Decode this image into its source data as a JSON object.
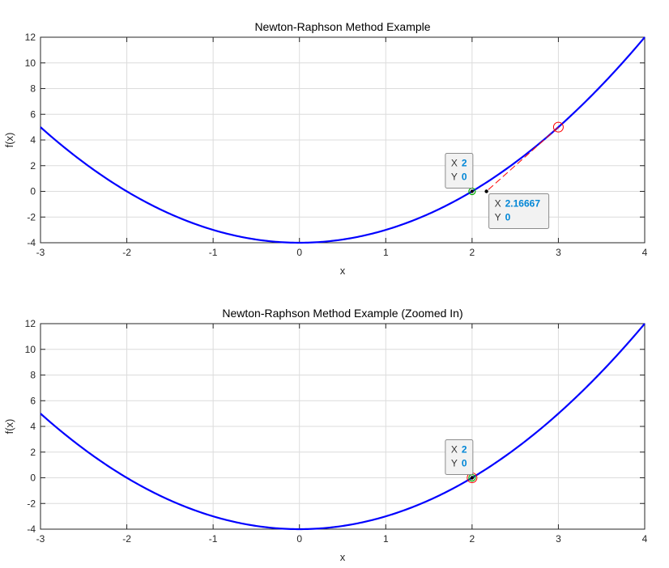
{
  "figure": {
    "background": "#ffffff",
    "curve_color": "#0000ff",
    "tangent_color": "#ff0000",
    "marker_color": "#ff0000",
    "root_color": "#00aa00",
    "datatip_value_color": "#0086d6"
  },
  "chart_data": [
    {
      "type": "line",
      "title": "Newton-Raphson Method Example",
      "xlabel": "x",
      "ylabel": "f(x)",
      "xlim": [
        -3,
        4
      ],
      "ylim": [
        -4,
        12
      ],
      "xticks": [
        "-3",
        "-2",
        "-1",
        "0",
        "1",
        "2",
        "3",
        "4"
      ],
      "yticks": [
        "-4",
        "-2",
        "0",
        "2",
        "4",
        "6",
        "8",
        "10",
        "12"
      ],
      "grid": true,
      "curve": {
        "function": "x^2 - 4",
        "x": [
          -3,
          -2.5,
          -2,
          -1.5,
          -1,
          -0.5,
          0,
          0.5,
          1,
          1.5,
          2,
          2.5,
          3,
          3.5,
          4
        ],
        "y": [
          5,
          2.25,
          0,
          -1.75,
          -3,
          -3.75,
          -4,
          -3.75,
          -3,
          -1.75,
          0,
          2.25,
          5,
          8.25,
          12
        ]
      },
      "tangent": {
        "x": [
          3,
          2.16667
        ],
        "y": [
          5,
          0
        ]
      },
      "markers": [
        {
          "kind": "circle",
          "x": 3,
          "y": 5
        },
        {
          "kind": "root",
          "x": 2,
          "y": 0
        },
        {
          "kind": "dot",
          "x": 2.16667,
          "y": 0
        }
      ],
      "datatips": [
        {
          "x_label": "X",
          "x_value": "2",
          "y_label": "Y",
          "y_value": "0",
          "at": [
            2,
            0
          ],
          "placement": "upper-left"
        },
        {
          "x_label": "X",
          "x_value": "2.16667",
          "y_label": "Y",
          "y_value": "0",
          "at": [
            2.16667,
            0
          ],
          "placement": "lower-right"
        }
      ]
    },
    {
      "type": "line",
      "title": "Newton-Raphson Method Example (Zoomed In)",
      "xlabel": "x",
      "ylabel": "f(x)",
      "xlim": [
        -3,
        4
      ],
      "ylim": [
        -4,
        12
      ],
      "xticks": [
        "-3",
        "-2",
        "-1",
        "0",
        "1",
        "2",
        "3",
        "4"
      ],
      "yticks": [
        "-4",
        "-2",
        "0",
        "2",
        "4",
        "6",
        "8",
        "10",
        "12"
      ],
      "grid": true,
      "curve": {
        "function": "x^2 - 4",
        "x": [
          -3,
          -2.5,
          -2,
          -1.5,
          -1,
          -0.5,
          0,
          0.5,
          1,
          1.5,
          2,
          2.5,
          3,
          3.5,
          4
        ],
        "y": [
          5,
          2.25,
          0,
          -1.75,
          -3,
          -3.75,
          -4,
          -3.75,
          -3,
          -1.75,
          0,
          2.25,
          5,
          8.25,
          12
        ]
      },
      "tangent": null,
      "markers": [
        {
          "kind": "circle",
          "x": 2,
          "y": 0
        },
        {
          "kind": "root",
          "x": 2,
          "y": 0
        },
        {
          "kind": "dot",
          "x": 2,
          "y": 0
        }
      ],
      "datatips": [
        {
          "x_label": "X",
          "x_value": "2",
          "y_label": "Y",
          "y_value": "0",
          "at": [
            2,
            0
          ],
          "placement": "upper-left"
        }
      ]
    }
  ]
}
